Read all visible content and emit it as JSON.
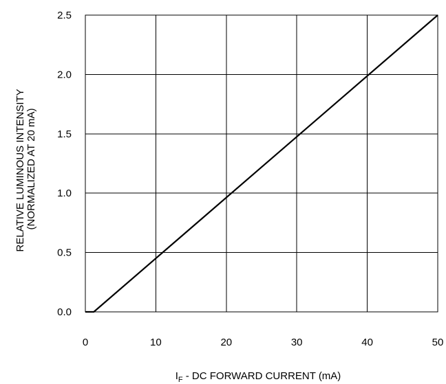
{
  "chart_data": {
    "type": "line",
    "x": [
      0,
      1.2,
      50
    ],
    "series": [
      {
        "values": [
          0.0,
          0.0,
          2.5
        ]
      }
    ],
    "xlabel": {
      "main": "I",
      "subscript": "F",
      "rest": " - DC FORWARD CURRENT (mA)"
    },
    "ylabel": {
      "line1": "RELATIVE LUMINOUS INTENSITY",
      "line2": "(NORMALIZED AT 20 mA)"
    },
    "xlim": [
      0,
      50
    ],
    "ylim": [
      0,
      2.5
    ],
    "xticks": [
      0,
      10,
      20,
      30,
      40,
      50
    ],
    "yticks": [
      0.0,
      0.5,
      1.0,
      1.5,
      2.0,
      2.5
    ],
    "xtick_labels": [
      "0",
      "10",
      "20",
      "30",
      "40",
      "50"
    ],
    "ytick_labels": [
      "0.0",
      "0.5",
      "1.0",
      "1.5",
      "2.0",
      "2.5"
    ],
    "grid": true,
    "colors": {
      "line": "#000000",
      "grid": "#000000",
      "background": "#ffffff"
    }
  }
}
